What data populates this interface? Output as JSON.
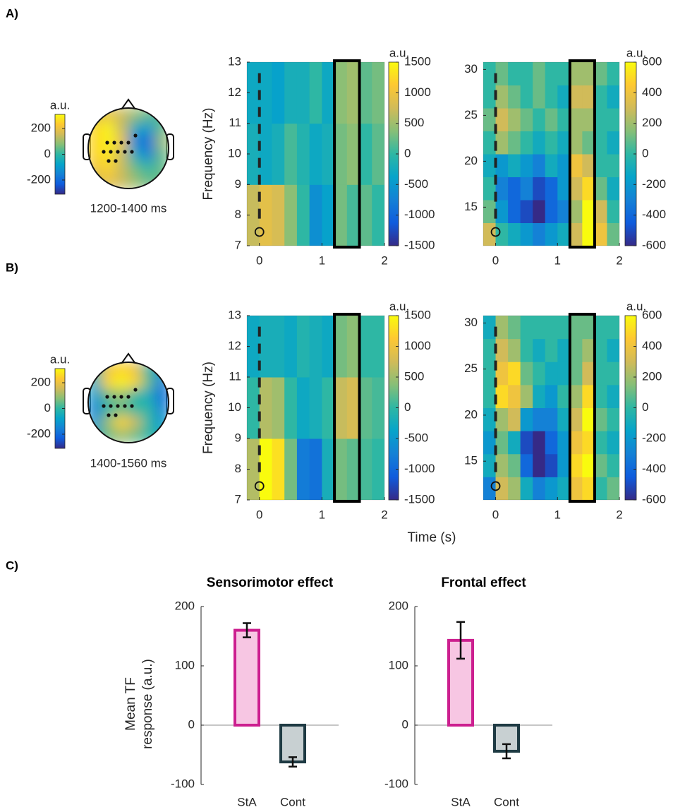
{
  "figure": {
    "panel_labels": [
      "A)",
      "B)",
      "C)"
    ],
    "shared_xlabel": "Time (s)",
    "colormap": [
      "#352a87",
      "#0f5cdd",
      "#1481d6",
      "#06a4ca",
      "#2eb7a4",
      "#87bf77",
      "#d1bb59",
      "#fec832",
      "#f9fb0e"
    ]
  },
  "chart_data": [
    {
      "type": "topomap",
      "label": "1200-1400 ms",
      "colorbar_label": "a.u.",
      "clim": [
        -310,
        310
      ],
      "cticks": [
        -200,
        0,
        200
      ],
      "values": [
        [
          150,
          200,
          150,
          100,
          50,
          0
        ],
        [
          250,
          300,
          150,
          -50,
          -100,
          50
        ],
        [
          250,
          300,
          200,
          -150,
          -200,
          100
        ],
        [
          250,
          280,
          150,
          -50,
          -150,
          50
        ],
        [
          200,
          250,
          150,
          50,
          0,
          50
        ],
        [
          150,
          200,
          150,
          100,
          50,
          50
        ]
      ]
    },
    {
      "type": "heatmap",
      "ylabel": "Frequency (Hz)",
      "colorbar_label": "a.u.",
      "x_edges": [
        -0.2,
        0,
        0.2,
        0.4,
        0.6,
        0.8,
        1.0,
        1.2,
        1.4,
        1.6,
        1.8,
        2.0
      ],
      "y_edges": [
        7,
        9,
        11,
        13
      ],
      "values": [
        [
          700,
          900,
          800,
          400,
          0,
          -600,
          -400,
          300,
          100,
          200,
          0
        ],
        [
          -200,
          -300,
          -200,
          100,
          -100,
          -300,
          -200,
          300,
          400,
          0,
          200
        ],
        [
          -300,
          -300,
          -400,
          -200,
          -200,
          0,
          -300,
          400,
          500,
          200,
          300
        ]
      ],
      "xlim": [
        -0.2,
        2.0
      ],
      "ylim": [
        7,
        13
      ],
      "xticks": [
        0,
        1,
        2
      ],
      "yticks": [
        7,
        8,
        9,
        10,
        11,
        12,
        13
      ],
      "clim": [
        -1500,
        1500
      ],
      "cticks": [
        -1500,
        -1000,
        -500,
        0,
        500,
        1000,
        1500
      ],
      "highlight": [
        1.2,
        1.6
      ],
      "onset": 0
    },
    {
      "type": "heatmap",
      "colorbar_label": "a.u.",
      "x_edges": [
        -0.2,
        0,
        0.2,
        0.4,
        0.6,
        0.8,
        1.0,
        1.2,
        1.4,
        1.6,
        1.8,
        2.0
      ],
      "y_edges": [
        10.8,
        13.3,
        15.8,
        18.3,
        20.8,
        23.3,
        25.8,
        28.3,
        30.8
      ],
      "values": [
        [
          300,
          0,
          -100,
          -200,
          -300,
          -200,
          -100,
          300,
          600,
          400,
          100
        ],
        [
          100,
          -200,
          -400,
          -500,
          -600,
          -400,
          -300,
          200,
          600,
          300,
          0
        ],
        [
          0,
          -300,
          -400,
          -300,
          -500,
          -400,
          -200,
          300,
          500,
          100,
          -100
        ],
        [
          -100,
          -200,
          -100,
          -200,
          -300,
          -100,
          -200,
          400,
          300,
          0,
          0
        ],
        [
          0,
          200,
          100,
          0,
          -100,
          0,
          -100,
          200,
          100,
          0,
          -100
        ],
        [
          100,
          300,
          200,
          100,
          0,
          100,
          0,
          200,
          200,
          0,
          0
        ],
        [
          0,
          200,
          100,
          0,
          100,
          0,
          -100,
          300,
          300,
          0,
          -100
        ],
        [
          0,
          100,
          0,
          0,
          100,
          0,
          0,
          200,
          200,
          100,
          0
        ]
      ],
      "xlim": [
        -0.2,
        2.0
      ],
      "ylim": [
        10.8,
        30.8
      ],
      "xticks": [
        0,
        1,
        2
      ],
      "yticks": [
        15,
        20,
        25,
        30
      ],
      "clim": [
        -600,
        600
      ],
      "cticks": [
        -600,
        -400,
        -200,
        0,
        200,
        400,
        600
      ],
      "highlight": [
        1.2,
        1.6
      ],
      "onset": 0
    },
    {
      "type": "topomap",
      "label": "1400-1560 ms",
      "colorbar_label": "a.u.",
      "clim": [
        -310,
        310
      ],
      "cticks": [
        -200,
        0,
        200
      ],
      "values": [
        [
          0,
          200,
          250,
          200,
          0,
          -100
        ],
        [
          -50,
          250,
          300,
          250,
          50,
          -150
        ],
        [
          -100,
          50,
          100,
          0,
          -50,
          -200
        ],
        [
          -150,
          0,
          50,
          0,
          0,
          -150
        ],
        [
          -100,
          100,
          250,
          150,
          0,
          -100
        ],
        [
          -50,
          50,
          100,
          50,
          0,
          -50
        ]
      ]
    },
    {
      "type": "heatmap",
      "ylabel": "Frequency (Hz)",
      "colorbar_label": "a.u.",
      "x_edges": [
        -0.2,
        0,
        0.2,
        0.4,
        0.6,
        0.8,
        1.0,
        1.2,
        1.4,
        1.6,
        1.8,
        2.0
      ],
      "y_edges": [
        7,
        9,
        11,
        13
      ],
      "values": [
        [
          600,
          1500,
          1300,
          300,
          -800,
          -900,
          -200,
          300,
          200,
          100,
          0
        ],
        [
          0,
          600,
          500,
          0,
          -300,
          -200,
          0,
          700,
          800,
          200,
          100
        ],
        [
          -300,
          -200,
          -200,
          -300,
          -100,
          -200,
          -300,
          300,
          400,
          0,
          0
        ]
      ],
      "xlim": [
        -0.2,
        2.0
      ],
      "ylim": [
        7,
        13
      ],
      "xticks": [
        0,
        1,
        2
      ],
      "yticks": [
        7,
        8,
        9,
        10,
        11,
        12,
        13
      ],
      "clim": [
        -1500,
        1500
      ],
      "cticks": [
        -1500,
        -1000,
        -500,
        0,
        500,
        1000,
        1500
      ],
      "highlight": [
        1.2,
        1.6
      ],
      "onset": 0
    },
    {
      "type": "heatmap",
      "colorbar_label": "a.u.",
      "x_edges": [
        -0.2,
        0,
        0.2,
        0.4,
        0.6,
        0.8,
        1.0,
        1.2,
        1.4,
        1.6,
        1.8,
        2.0
      ],
      "y_edges": [
        10.8,
        13.3,
        15.8,
        18.3,
        20.8,
        23.3,
        25.8,
        28.3,
        30.8
      ],
      "values": [
        [
          -300,
          300,
          200,
          -100,
          -300,
          -200,
          -100,
          400,
          500,
          0,
          100
        ],
        [
          -100,
          200,
          100,
          -400,
          -600,
          -500,
          -200,
          500,
          600,
          100,
          0
        ],
        [
          -200,
          100,
          -100,
          -500,
          -600,
          -400,
          -200,
          400,
          500,
          0,
          -100
        ],
        [
          -100,
          200,
          300,
          -200,
          -300,
          -300,
          -100,
          300,
          600,
          100,
          0
        ],
        [
          0,
          500,
          400,
          200,
          -100,
          -200,
          0,
          200,
          500,
          0,
          -100
        ],
        [
          0,
          400,
          500,
          100,
          0,
          -100,
          -100,
          100,
          300,
          0,
          0
        ],
        [
          0,
          300,
          200,
          0,
          -100,
          0,
          -100,
          100,
          200,
          0,
          -100
        ],
        [
          -100,
          200,
          100,
          0,
          0,
          0,
          0,
          100,
          100,
          0,
          0
        ]
      ],
      "xlim": [
        -0.2,
        2.0
      ],
      "ylim": [
        10.8,
        30.8
      ],
      "xticks": [
        0,
        1,
        2
      ],
      "yticks": [
        15,
        20,
        25,
        30
      ],
      "clim": [
        -600,
        600
      ],
      "cticks": [
        -600,
        -400,
        -200,
        0,
        200,
        400,
        600
      ],
      "highlight": [
        1.2,
        1.6
      ],
      "onset": 0
    },
    {
      "type": "bar",
      "title": "Sensorimotor effect",
      "ylabel": [
        "Mean TF",
        "response (a.u.)"
      ],
      "categories": [
        "StA",
        "Cont"
      ],
      "values": [
        160,
        -62
      ],
      "errors": [
        12,
        8
      ],
      "fills": [
        "#f7c6e3",
        "#c8d0d2"
      ],
      "edges": [
        "#cc1f8f",
        "#1e3a43"
      ],
      "ylim": [
        -100,
        200
      ],
      "yticks": [
        -100,
        0,
        100,
        200
      ]
    },
    {
      "type": "bar",
      "title": "Frontal effect",
      "categories": [
        "StA",
        "Cont"
      ],
      "values": [
        143,
        -44
      ],
      "errors": [
        31,
        12
      ],
      "fills": [
        "#f7c6e3",
        "#c8d0d2"
      ],
      "edges": [
        "#cc1f8f",
        "#1e3a43"
      ],
      "ylim": [
        -100,
        200
      ],
      "yticks": [
        -100,
        0,
        100,
        200
      ]
    }
  ]
}
